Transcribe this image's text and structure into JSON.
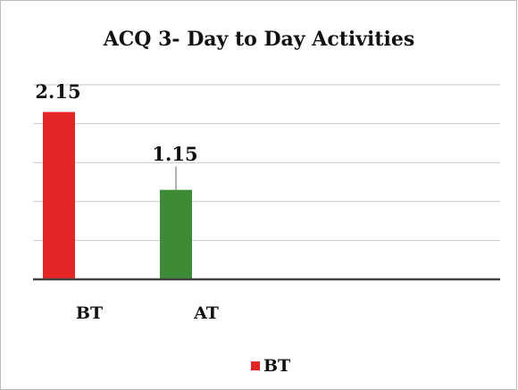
{
  "chart_data": {
    "type": "bar",
    "title": "ACQ 3- Day to Day Activities",
    "categories": [
      "BT",
      "AT"
    ],
    "series": [
      {
        "name": "BT",
        "values": [
          2.15,
          1.15
        ]
      }
    ],
    "colors": [
      "#e32526",
      "#3d8b37"
    ],
    "ylim": [
      0,
      2.5
    ],
    "yticks": [
      0,
      0.5,
      1,
      1.5,
      2,
      2.5
    ],
    "grid": true,
    "legend": "bottom"
  }
}
